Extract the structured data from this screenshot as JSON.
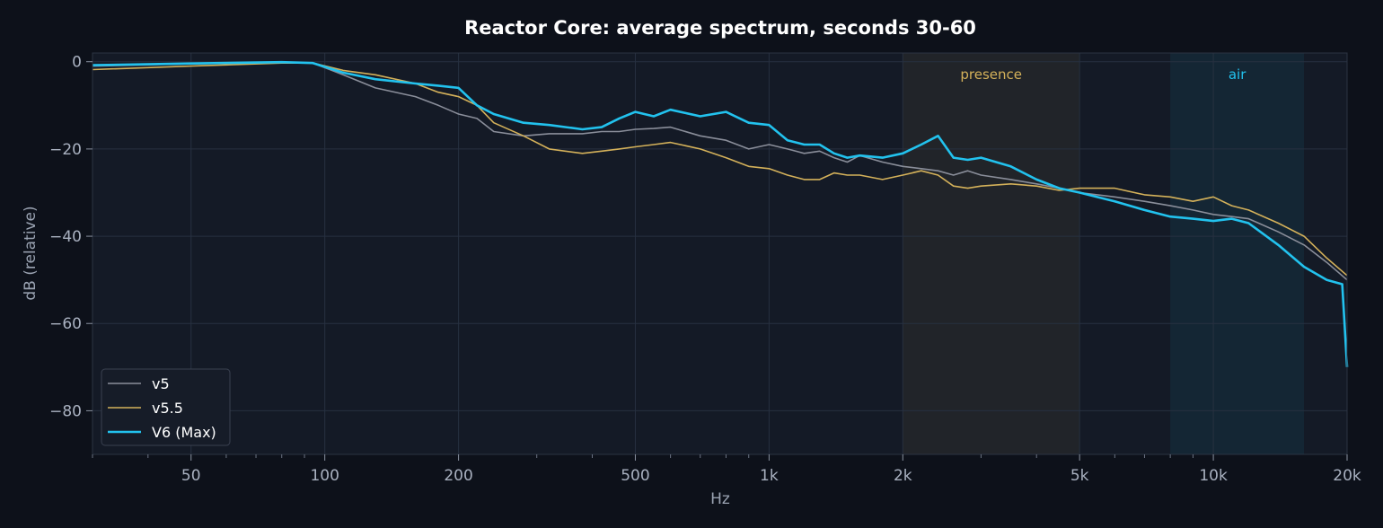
{
  "chart_data": {
    "type": "line",
    "title": "Reactor Core: average spectrum, seconds 30-60",
    "xlabel": "Hz",
    "ylabel": "dB (relative)",
    "xscale": "log",
    "xlim": [
      30,
      20000
    ],
    "ylim": [
      -90,
      2
    ],
    "xticks": [
      {
        "value": 50,
        "label": "50"
      },
      {
        "value": 100,
        "label": "100"
      },
      {
        "value": 200,
        "label": "200"
      },
      {
        "value": 500,
        "label": "500"
      },
      {
        "value": 1000,
        "label": "1k"
      },
      {
        "value": 2000,
        "label": "2k"
      },
      {
        "value": 5000,
        "label": "5k"
      },
      {
        "value": 10000,
        "label": "10k"
      },
      {
        "value": 20000,
        "label": "20k"
      }
    ],
    "yticks": [
      {
        "value": 0,
        "label": "0"
      },
      {
        "value": -20,
        "label": "−20"
      },
      {
        "value": -40,
        "label": "−40"
      },
      {
        "value": -60,
        "label": "−60"
      },
      {
        "value": -80,
        "label": "−80"
      }
    ],
    "grid": true,
    "legend": "lower-left",
    "bands": [
      {
        "label": "presence",
        "from": 2000,
        "to": 5000,
        "color": "#d4b15a"
      },
      {
        "label": "air",
        "from": 8000,
        "to": 16000,
        "color": "#22c2ee"
      }
    ],
    "series": [
      {
        "name": "v5",
        "color": "#8a8e9a",
        "width": 1.6,
        "x": [
          30,
          50,
          80,
          94,
          110,
          130,
          160,
          180,
          200,
          220,
          240,
          280,
          320,
          380,
          420,
          460,
          500,
          550,
          600,
          700,
          800,
          900,
          1000,
          1100,
          1200,
          1300,
          1400,
          1500,
          1600,
          1800,
          2000,
          2200,
          2400,
          2600,
          2800,
          3000,
          3500,
          4000,
          4500,
          5000,
          6000,
          7000,
          8000,
          9000,
          10000,
          11000,
          12000,
          14000,
          16000,
          18000,
          20000
        ],
        "y": [
          -1,
          -0.5,
          -0.1,
          -0.3,
          -3,
          -6,
          -8,
          -10,
          -12,
          -13,
          -16,
          -17,
          -16.5,
          -16.5,
          -16,
          -16,
          -15.5,
          -15.3,
          -15,
          -17,
          -18,
          -20,
          -19,
          -20,
          -21,
          -20.5,
          -22,
          -23,
          -21.5,
          -23,
          -24,
          -24.5,
          -25,
          -26,
          -25,
          -26,
          -27,
          -28,
          -29,
          -30,
          -31,
          -32,
          -33,
          -34,
          -35,
          -35.5,
          -36,
          -39,
          -42,
          -46,
          -50
        ]
      },
      {
        "name": "v5.5",
        "color": "#d4b15a",
        "width": 1.6,
        "x": [
          30,
          50,
          80,
          94,
          110,
          130,
          160,
          180,
          200,
          220,
          240,
          280,
          320,
          380,
          420,
          460,
          500,
          550,
          600,
          700,
          800,
          900,
          1000,
          1100,
          1200,
          1300,
          1400,
          1500,
          1600,
          1800,
          2000,
          2200,
          2400,
          2600,
          2800,
          3000,
          3500,
          4000,
          4500,
          5000,
          6000,
          7000,
          8000,
          9000,
          10000,
          11000,
          12000,
          14000,
          16000,
          18000,
          20000
        ],
        "y": [
          -1.8,
          -1,
          -0.3,
          -0.3,
          -2,
          -3,
          -5,
          -7,
          -8,
          -10,
          -14,
          -17,
          -20,
          -21,
          -20.5,
          -20,
          -19.5,
          -19,
          -18.5,
          -20,
          -22,
          -24,
          -24.5,
          -26,
          -27,
          -27,
          -25.5,
          -26,
          -26,
          -27,
          -26,
          -25,
          -26,
          -28.5,
          -29,
          -28.5,
          -28,
          -28.5,
          -29.5,
          -29,
          -29,
          -30.5,
          -31,
          -32,
          -31,
          -33,
          -34,
          -37,
          -40,
          -45,
          -49
        ]
      },
      {
        "name": "V6 (Max)",
        "color": "#22c2ee",
        "width": 2.6,
        "x": [
          30,
          50,
          80,
          94,
          110,
          130,
          160,
          180,
          200,
          220,
          240,
          280,
          320,
          380,
          420,
          460,
          500,
          550,
          600,
          700,
          800,
          900,
          1000,
          1100,
          1200,
          1300,
          1400,
          1500,
          1600,
          1800,
          2000,
          2200,
          2400,
          2600,
          2800,
          3000,
          3500,
          4000,
          4500,
          5000,
          6000,
          7000,
          8000,
          9000,
          10000,
          11000,
          12000,
          14000,
          16000,
          18000,
          19500,
          20000
        ],
        "y": [
          -0.8,
          -0.4,
          -0.1,
          -0.3,
          -2.5,
          -4,
          -5,
          -5.5,
          -6,
          -10,
          -12,
          -14,
          -14.5,
          -15.5,
          -15,
          -13,
          -11.5,
          -12.5,
          -11,
          -12.5,
          -11.5,
          -14,
          -14.5,
          -18,
          -19,
          -19,
          -21,
          -22,
          -21.5,
          -22,
          -21,
          -19,
          -17,
          -22,
          -22.5,
          -22,
          -24,
          -27,
          -29,
          -30,
          -32,
          -34,
          -35.5,
          -36,
          -36.5,
          -36,
          -37,
          -42,
          -47,
          -50,
          -51,
          -70
        ]
      }
    ]
  }
}
